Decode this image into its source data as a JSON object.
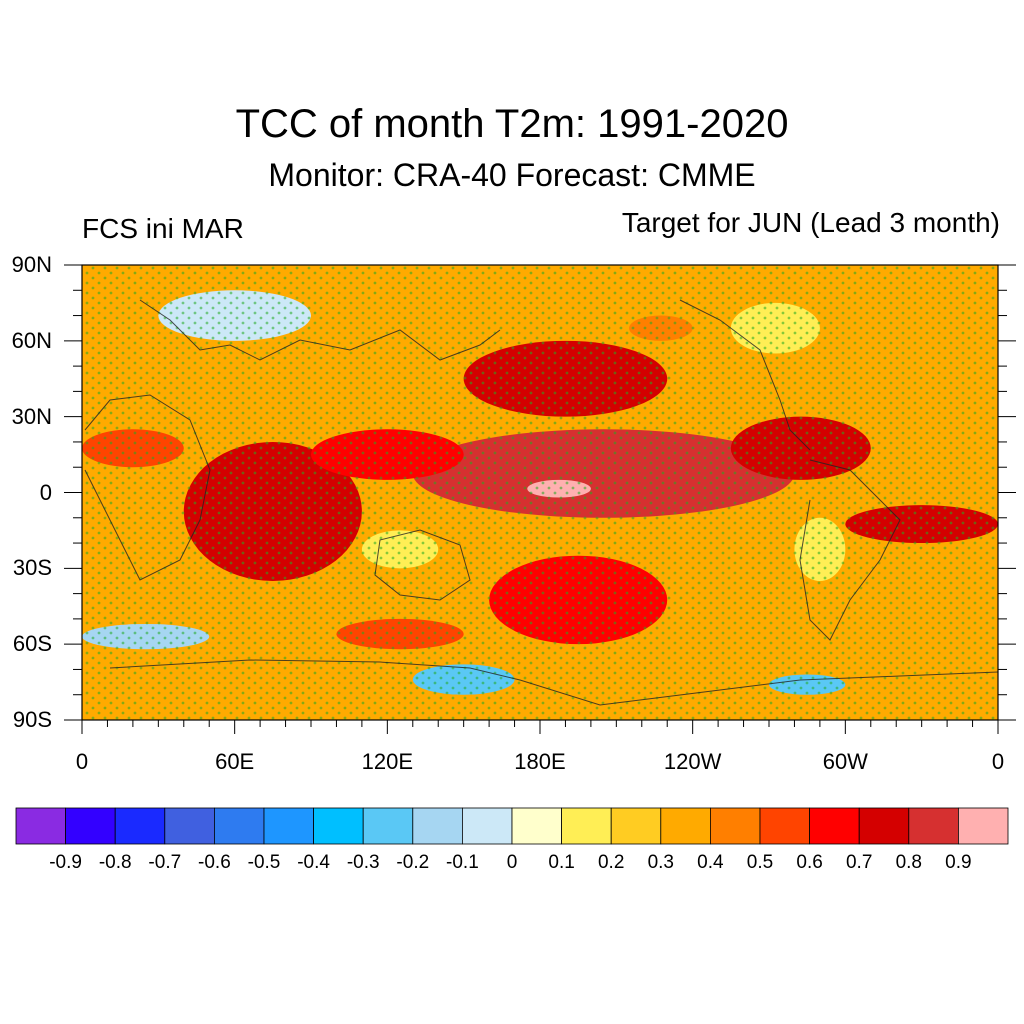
{
  "title": "TCC of month T2m: 1991-2020",
  "subtitle": "Monitor: CRA-40   Forecast: CMME",
  "left_label": "FCS ini MAR",
  "right_label": "Target for JUN (Lead 3 month)",
  "map": {
    "lat_labels": [
      "90N",
      "60N",
      "30N",
      "0",
      "30S",
      "60S",
      "90S"
    ],
    "lat_values": [
      90,
      60,
      30,
      0,
      -30,
      -60,
      -90
    ],
    "lon_labels": [
      "0",
      "60E",
      "120E",
      "180E",
      "120W",
      "60W",
      "0"
    ],
    "lon_values": [
      0,
      60,
      120,
      180,
      240,
      300,
      360
    ],
    "significance_dot_color": "#22aa22",
    "regions": [
      {
        "lon": [
          0,
          360
        ],
        "lat": [
          -90,
          90
        ],
        "level": 0.3
      },
      {
        "lon": [
          130,
          280
        ],
        "lat": [
          -10,
          25
        ],
        "level": 0.8
      },
      {
        "lon": [
          150,
          230
        ],
        "lat": [
          30,
          60
        ],
        "level": 0.7
      },
      {
        "lon": [
          40,
          110
        ],
        "lat": [
          -35,
          20
        ],
        "level": 0.7
      },
      {
        "lon": [
          175,
          200
        ],
        "lat": [
          -2,
          5
        ],
        "level": 0.9
      },
      {
        "lon": [
          160,
          230
        ],
        "lat": [
          -60,
          -25
        ],
        "level": 0.6
      },
      {
        "lon": [
          300,
          360
        ],
        "lat": [
          -20,
          -5
        ],
        "level": 0.7
      },
      {
        "lon": [
          255,
          310
        ],
        "lat": [
          5,
          30
        ],
        "level": 0.7
      },
      {
        "lon": [
          90,
          150
        ],
        "lat": [
          5,
          25
        ],
        "level": 0.6
      },
      {
        "lon": [
          0,
          40
        ],
        "lat": [
          10,
          25
        ],
        "level": 0.5
      },
      {
        "lon": [
          100,
          150
        ],
        "lat": [
          -62,
          -50
        ],
        "level": 0.5
      },
      {
        "lon": [
          30,
          90
        ],
        "lat": [
          60,
          80
        ],
        "level": -0.1
      },
      {
        "lon": [
          130,
          170
        ],
        "lat": [
          -80,
          -68
        ],
        "level": -0.3
      },
      {
        "lon": [
          270,
          300
        ],
        "lat": [
          -80,
          -72
        ],
        "level": -0.3
      },
      {
        "lon": [
          0,
          50
        ],
        "lat": [
          -62,
          -52
        ],
        "level": -0.2
      },
      {
        "lon": [
          110,
          140
        ],
        "lat": [
          -30,
          -15
        ],
        "level": 0.1
      },
      {
        "lon": [
          280,
          300
        ],
        "lat": [
          -35,
          -10
        ],
        "level": 0.1
      },
      {
        "lon": [
          255,
          290
        ],
        "lat": [
          55,
          75
        ],
        "level": 0.1
      },
      {
        "lon": [
          215,
          240
        ],
        "lat": [
          60,
          70
        ],
        "level": 0.4
      }
    ]
  },
  "colorbar": {
    "colors": [
      "#8a2be2",
      "#3300ff",
      "#1a2aff",
      "#4060e0",
      "#2e7bf0",
      "#1e96ff",
      "#00bfff",
      "#5ac8f5",
      "#a6d6f2",
      "#cce8f7",
      "#ffffcc",
      "#ffee55",
      "#ffcc22",
      "#ffaa00",
      "#ff7f00",
      "#ff4400",
      "#ff0000",
      "#d40000",
      "#d63030",
      "#ffb0b0"
    ],
    "labels": [
      "-0.9",
      "-0.8",
      "-0.7",
      "-0.6",
      "-0.5",
      "-0.4",
      "-0.3",
      "-0.2",
      "-0.1",
      "0",
      "0.1",
      "0.2",
      "0.3",
      "0.4",
      "0.5",
      "0.6",
      "0.7",
      "0.8",
      "0.9"
    ]
  }
}
